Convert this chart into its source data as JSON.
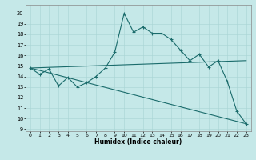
{
  "xlabel": "Humidex (Indice chaleur)",
  "xlim": [
    -0.5,
    23.5
  ],
  "ylim": [
    8.8,
    20.8
  ],
  "yticks": [
    9,
    10,
    11,
    12,
    13,
    14,
    15,
    16,
    17,
    18,
    19,
    20
  ],
  "xticks": [
    0,
    1,
    2,
    3,
    4,
    5,
    6,
    7,
    8,
    9,
    10,
    11,
    12,
    13,
    14,
    15,
    16,
    17,
    18,
    19,
    20,
    21,
    22,
    23
  ],
  "bg_color": "#c5e8e8",
  "grid_color": "#a8d4d4",
  "line_color": "#1a6b6b",
  "line1_x": [
    0,
    1,
    2,
    3,
    4,
    5,
    6,
    7,
    8,
    9,
    10,
    11,
    12,
    13,
    14,
    15,
    16,
    17,
    18,
    19,
    20,
    21,
    22,
    23
  ],
  "line1_y": [
    14.8,
    14.2,
    14.7,
    13.1,
    13.9,
    13.0,
    13.4,
    14.0,
    14.8,
    16.3,
    20.0,
    18.2,
    18.7,
    18.1,
    18.1,
    17.5,
    16.5,
    15.5,
    16.1,
    14.9,
    15.5,
    13.5,
    10.7,
    9.5
  ],
  "line2_x": [
    0,
    23
  ],
  "line2_y": [
    14.8,
    15.5
  ],
  "line3_x": [
    0,
    23
  ],
  "line3_y": [
    14.8,
    9.5
  ],
  "marker": "+"
}
